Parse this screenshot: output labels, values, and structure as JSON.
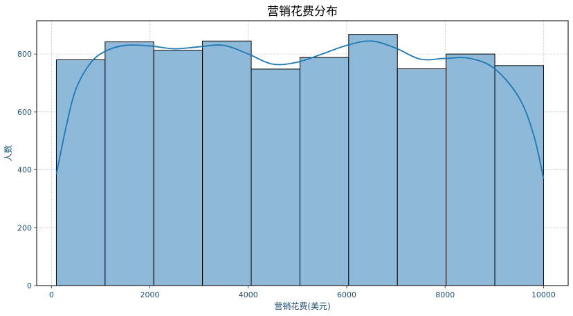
{
  "chart_data": {
    "type": "bar",
    "title": "营销花费分布",
    "xlabel": "营销花费(美元)",
    "ylabel": "人数",
    "xlim": [
      -300,
      10500
    ],
    "ylim": [
      0,
      915
    ],
    "xticks": [
      0,
      2000,
      4000,
      6000,
      8000,
      10000
    ],
    "yticks": [
      0,
      200,
      400,
      600,
      800
    ],
    "xtick_labels": [
      "0",
      "2000",
      "4000",
      "6000",
      "8000",
      "10000"
    ],
    "ytick_labels": [
      "0",
      "200",
      "400",
      "600",
      "800"
    ],
    "grid": true,
    "bins": [
      {
        "x0": 100,
        "x1": 1090,
        "value": 780
      },
      {
        "x0": 1090,
        "x1": 2080,
        "value": 842
      },
      {
        "x0": 2080,
        "x1": 3070,
        "value": 813
      },
      {
        "x0": 3070,
        "x1": 4060,
        "value": 845
      },
      {
        "x0": 4060,
        "x1": 5050,
        "value": 748
      },
      {
        "x0": 5050,
        "x1": 6040,
        "value": 788
      },
      {
        "x0": 6040,
        "x1": 7030,
        "value": 868
      },
      {
        "x0": 7030,
        "x1": 8020,
        "value": 749
      },
      {
        "x0": 8020,
        "x1": 9010,
        "value": 800
      },
      {
        "x0": 9010,
        "x1": 10000,
        "value": 760
      }
    ],
    "kde": {
      "x": [
        100,
        300,
        500,
        800,
        1100,
        1500,
        2000,
        2500,
        3000,
        3500,
        4000,
        4500,
        5000,
        5500,
        6000,
        6500,
        7000,
        7500,
        8000,
        8500,
        9000,
        9500,
        9800,
        10000
      ],
      "y": [
        385,
        550,
        680,
        770,
        810,
        830,
        828,
        818,
        825,
        830,
        800,
        765,
        772,
        800,
        830,
        845,
        820,
        782,
        785,
        785,
        750,
        650,
        520,
        370
      ]
    },
    "colors": {
      "bar": "#8fb9d9",
      "edge": "#000000",
      "kde": "#1f77b4",
      "axis_text": "#1f4e6b"
    }
  }
}
